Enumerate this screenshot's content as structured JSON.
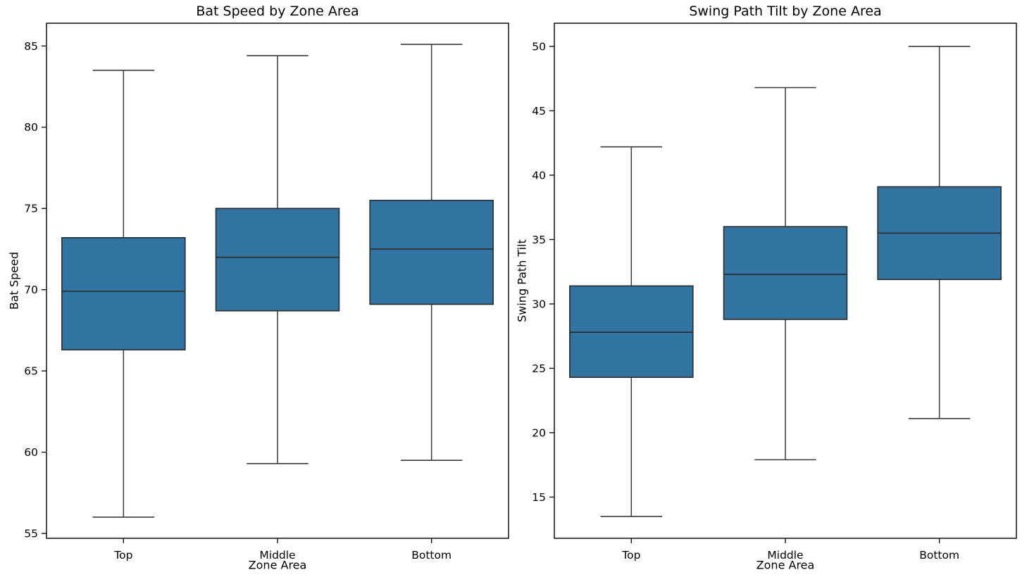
{
  "figure": {
    "background": "#ffffff",
    "box_fill": "#3174a2",
    "box_edge": "#2b2b2b",
    "whisker_color": "#3a3a3a",
    "axis_color": "#000000",
    "text_color": "#000000"
  },
  "chart_data": [
    {
      "type": "box",
      "title": "Bat Speed by Zone Area",
      "xlabel": "Zone Area",
      "ylabel": "Bat Speed",
      "categories": [
        "Top",
        "Middle",
        "Bottom"
      ],
      "yticks": [
        55,
        60,
        65,
        70,
        75,
        80,
        85
      ],
      "ylim": [
        54.7,
        86.4
      ],
      "grid": false,
      "legend": false,
      "series": [
        {
          "category": "Top",
          "whislo": 56.0,
          "q1": 66.3,
          "med": 69.9,
          "q3": 73.2,
          "whishi": 83.5
        },
        {
          "category": "Middle",
          "whislo": 59.3,
          "q1": 68.7,
          "med": 72.0,
          "q3": 75.0,
          "whishi": 84.4
        },
        {
          "category": "Bottom",
          "whislo": 59.5,
          "q1": 69.1,
          "med": 72.5,
          "q3": 75.5,
          "whishi": 85.1
        }
      ]
    },
    {
      "type": "box",
      "title": "Swing Path Tilt by Zone Area",
      "xlabel": "Zone Area",
      "ylabel": "Swing Path Tilt",
      "categories": [
        "Top",
        "Middle",
        "Bottom"
      ],
      "yticks": [
        15,
        20,
        25,
        30,
        35,
        40,
        45,
        50
      ],
      "ylim": [
        11.8,
        51.8
      ],
      "grid": false,
      "legend": false,
      "series": [
        {
          "category": "Top",
          "whislo": 13.5,
          "q1": 24.3,
          "med": 27.8,
          "q3": 31.4,
          "whishi": 42.2
        },
        {
          "category": "Middle",
          "whislo": 17.9,
          "q1": 28.8,
          "med": 32.3,
          "q3": 36.0,
          "whishi": 46.8
        },
        {
          "category": "Bottom",
          "whislo": 21.1,
          "q1": 31.9,
          "med": 35.5,
          "q3": 39.1,
          "whishi": 50.0
        }
      ]
    }
  ]
}
